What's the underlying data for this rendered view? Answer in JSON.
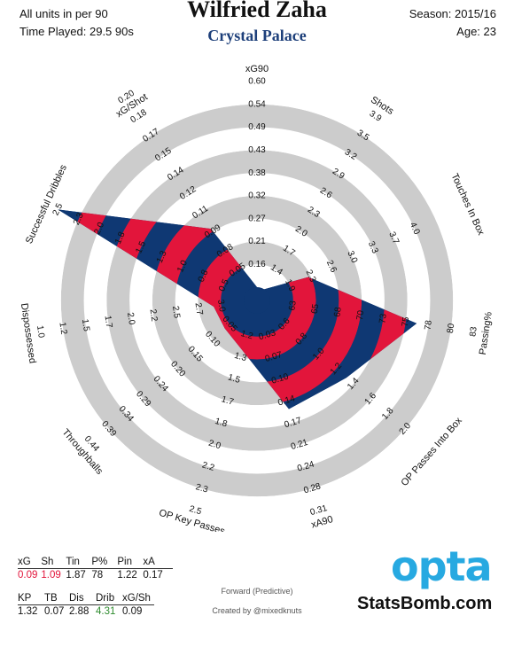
{
  "header": {
    "units_note": "All units in per 90",
    "time_played": "Time Played: 29.5 90s",
    "season": "Season: 2015/16",
    "age": "Age: 23"
  },
  "player": {
    "name": "Wilfried Zaha",
    "team": "Crystal Palace"
  },
  "colors": {
    "ring": "#cccccc",
    "red": "#e2153b",
    "navy": "#0f3873",
    "team": "#1d3f7a",
    "good": "#2e8b2e",
    "bad": "#e2153b",
    "opta": "#27a9e1"
  },
  "chart_data": {
    "type": "radar",
    "metrics": [
      {
        "label": "xG90",
        "ticks": [
          "0.16",
          "0.21",
          "0.27",
          "0.32",
          "0.38",
          "0.43",
          "0.49",
          "0.54",
          "0.60"
        ],
        "value": 0.09,
        "range": [
          0.1,
          0.6
        ]
      },
      {
        "label": "Shots",
        "ticks": [
          "1.4",
          "1.7",
          "2.0",
          "2.3",
          "2.6",
          "2.9",
          "3.2",
          "3.5",
          "3.9"
        ],
        "value": 1.09,
        "range": [
          1.1,
          4.1
        ]
      },
      {
        "label": "Touches In Box",
        "ticks": [
          "1.9",
          "2.3",
          "2.6",
          "3.0",
          "3.3",
          "3.7",
          "4.0"
        ],
        "value": 1.87,
        "range": [
          1.2,
          4.4
        ]
      },
      {
        "label": "Passing%",
        "ticks": [
          "63",
          "65",
          "68",
          "70",
          "73",
          "75",
          "78",
          "80",
          "83"
        ],
        "value": 78,
        "range": [
          60,
          85
        ]
      },
      {
        "label": "OP Passes Into Box",
        "ticks": [
          "0.6",
          "0.8",
          "1.0",
          "1.2",
          "1.4",
          "1.6",
          "1.8",
          "2.0"
        ],
        "value": 1.22,
        "range": [
          0.2,
          2.2
        ]
      },
      {
        "label": "xA90",
        "ticks": [
          "0.03",
          "0.07",
          "0.10",
          "0.14",
          "0.17",
          "0.21",
          "0.24",
          "0.28",
          "0.31"
        ],
        "value": 0.17,
        "range": [
          0.0,
          0.35
        ]
      },
      {
        "label": "OP Key Passes",
        "ticks": [
          "1.2",
          "1.3",
          "1.5",
          "1.7",
          "1.8",
          "2.0",
          "2.2",
          "2.3",
          "2.5"
        ],
        "value": 1.32,
        "range": [
          1.0,
          2.7
        ]
      },
      {
        "label": "Throughballs",
        "ticks": [
          "0.05",
          "0.10",
          "0.15",
          "0.20",
          "0.24",
          "0.29",
          "0.34",
          "0.39",
          "0.44"
        ],
        "value": 0.07,
        "range": [
          0.0,
          0.49
        ]
      },
      {
        "label": "Dispossessed",
        "ticks": [
          "3.0",
          "2.7",
          "2.5",
          "2.2",
          "2.0",
          "1.7",
          "1.5",
          "1.2",
          "1.0"
        ],
        "value": 2.88,
        "range": [
          3.25,
          0.75
        ]
      },
      {
        "label": "Successful Dribbles",
        "ticks": [
          "0.5",
          "0.8",
          "1.0",
          "1.3",
          "1.5",
          "1.8",
          "2.0",
          "2.3",
          "2.5"
        ],
        "value": 4.31,
        "range": [
          0.25,
          2.75
        ]
      },
      {
        "label": "xG/Shot",
        "ticks": [
          "0.05",
          "0.08",
          "0.09",
          "0.11",
          "0.12",
          "0.14",
          "0.15",
          "0.17",
          "0.18",
          "0.20"
        ],
        "value": 0.09,
        "range": [
          0.02,
          0.22
        ]
      }
    ]
  },
  "stats_table": {
    "row1": {
      "headers": [
        "xG",
        "Sh",
        "Tin",
        "P%",
        "Pin",
        "xA"
      ],
      "values": [
        "0.09",
        "1.09",
        "1.87",
        "78",
        "1.22",
        "0.17"
      ],
      "value_colors": [
        "#e2153b",
        "#e2153b",
        "#111111",
        "#111111",
        "#111111",
        "#111111"
      ]
    },
    "row2": {
      "headers": [
        "KP",
        "TB",
        "Dis",
        "Drib",
        "xG/Sh"
      ],
      "values": [
        "1.32",
        "0.07",
        "2.88",
        "4.31",
        "0.09"
      ],
      "value_colors": [
        "#111111",
        "#111111",
        "#111111",
        "#2e8b2e",
        "#111111"
      ]
    }
  },
  "footer": {
    "position_note": "Forward (Predictive)",
    "credit": "Created by @mixedknuts",
    "opta_logo": "opta",
    "brand": "StatsBomb.com"
  }
}
